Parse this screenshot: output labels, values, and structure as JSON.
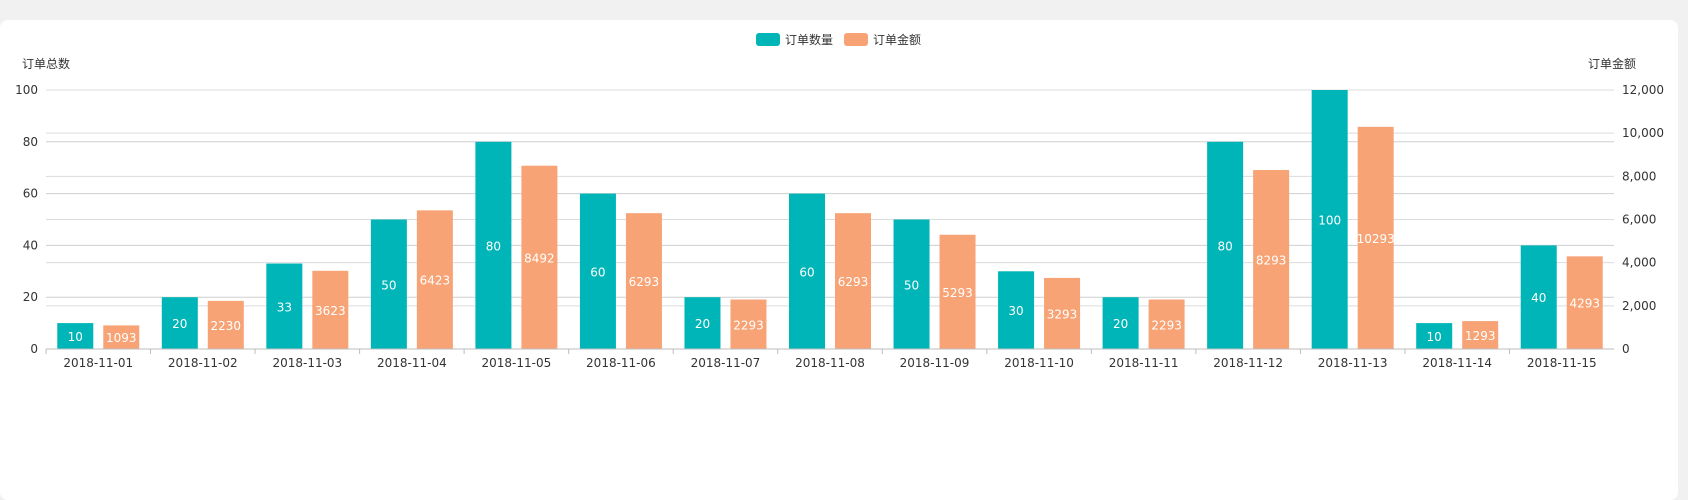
{
  "chart_data": {
    "type": "bar",
    "title": "",
    "xlabel": "",
    "legend_position": "top-center",
    "grid": true,
    "categories": [
      "2018-11-01",
      "2018-11-02",
      "2018-11-03",
      "2018-11-04",
      "2018-11-05",
      "2018-11-06",
      "2018-11-07",
      "2018-11-08",
      "2018-11-09",
      "2018-11-10",
      "2018-11-11",
      "2018-11-12",
      "2018-11-13",
      "2018-11-14",
      "2018-11-15"
    ],
    "y_left": {
      "label": "订单总数",
      "range": [
        0,
        100
      ],
      "ticks": [
        "0",
        "20",
        "40",
        "60",
        "80",
        "100"
      ]
    },
    "y_right": {
      "label": "订单金额",
      "range": [
        0,
        12000
      ],
      "ticks": [
        "0",
        "2,000",
        "4,000",
        "6,000",
        "8,000",
        "10,000",
        "12,000"
      ]
    },
    "series": [
      {
        "name": "订单数量",
        "axis": "left",
        "color": "#00b5b8",
        "values": [
          10,
          20,
          33,
          50,
          80,
          60,
          20,
          60,
          50,
          30,
          20,
          80,
          100,
          10,
          40
        ]
      },
      {
        "name": "订单金额",
        "axis": "right",
        "color": "#f7a375",
        "values": [
          1093,
          2230,
          3623,
          6423,
          8492,
          6293,
          2293,
          6293,
          5293,
          3293,
          2293,
          8293,
          10293,
          1293,
          4293
        ]
      }
    ]
  }
}
